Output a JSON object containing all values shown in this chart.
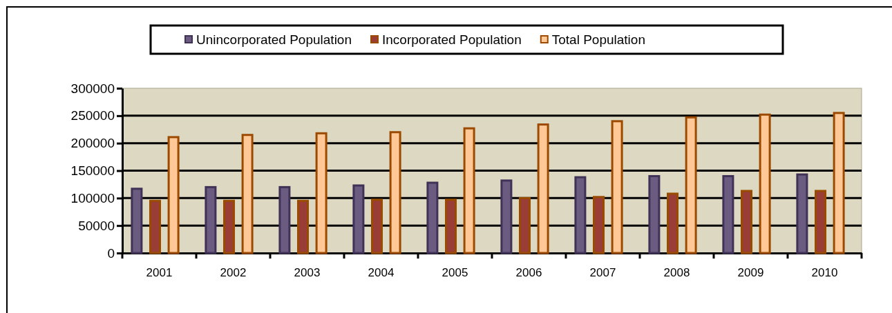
{
  "chart_data": {
    "type": "bar",
    "categories": [
      "2001",
      "2002",
      "2003",
      "2004",
      "2005",
      "2006",
      "2007",
      "2008",
      "2009",
      "2010"
    ],
    "series": [
      {
        "name": "Unincorporated Population",
        "color": "#6b5b80",
        "values": [
          117000,
          120000,
          120000,
          123000,
          128000,
          132000,
          138000,
          140000,
          140000,
          143000
        ]
      },
      {
        "name": "Incorporated Population",
        "color": "#993d36",
        "values": [
          95000,
          95000,
          95000,
          97000,
          97000,
          100000,
          102000,
          108000,
          113000,
          113000
        ]
      },
      {
        "name": "Total Population",
        "color": "#ffc896",
        "values": [
          211000,
          215000,
          218000,
          220000,
          227000,
          234000,
          240000,
          247000,
          252000,
          255000
        ]
      }
    ],
    "ylim": [
      0,
      300000
    ],
    "yticks": [
      0,
      50000,
      100000,
      150000,
      200000,
      250000,
      300000
    ],
    "grid": "y",
    "legend": "top"
  }
}
